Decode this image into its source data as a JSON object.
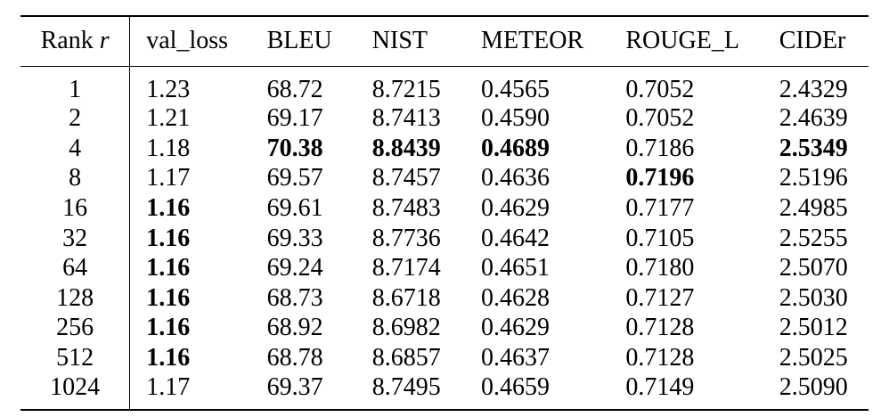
{
  "table": {
    "headers": {
      "rank_label": "Rank",
      "rank_var": "r",
      "val_loss": "val_loss",
      "bleu": "BLEU",
      "nist": "NIST",
      "meteor": "METEOR",
      "rouge": "ROUGE_L",
      "cider": "CIDEr"
    },
    "rows": [
      {
        "rank": "1",
        "val_loss": "1.23",
        "bleu": "68.72",
        "nist": "8.7215",
        "meteor": "0.4565",
        "rouge": "0.7052",
        "cider": "2.4329",
        "bold": []
      },
      {
        "rank": "2",
        "val_loss": "1.21",
        "bleu": "69.17",
        "nist": "8.7413",
        "meteor": "0.4590",
        "rouge": "0.7052",
        "cider": "2.4639",
        "bold": []
      },
      {
        "rank": "4",
        "val_loss": "1.18",
        "bleu": "70.38",
        "nist": "8.8439",
        "meteor": "0.4689",
        "rouge": "0.7186",
        "cider": "2.5349",
        "bold": [
          "bleu",
          "nist",
          "meteor",
          "cider"
        ]
      },
      {
        "rank": "8",
        "val_loss": "1.17",
        "bleu": "69.57",
        "nist": "8.7457",
        "meteor": "0.4636",
        "rouge": "0.7196",
        "cider": "2.5196",
        "bold": [
          "rouge"
        ]
      },
      {
        "rank": "16",
        "val_loss": "1.16",
        "bleu": "69.61",
        "nist": "8.7483",
        "meteor": "0.4629",
        "rouge": "0.7177",
        "cider": "2.4985",
        "bold": [
          "val_loss"
        ]
      },
      {
        "rank": "32",
        "val_loss": "1.16",
        "bleu": "69.33",
        "nist": "8.7736",
        "meteor": "0.4642",
        "rouge": "0.7105",
        "cider": "2.5255",
        "bold": [
          "val_loss"
        ]
      },
      {
        "rank": "64",
        "val_loss": "1.16",
        "bleu": "69.24",
        "nist": "8.7174",
        "meteor": "0.4651",
        "rouge": "0.7180",
        "cider": "2.5070",
        "bold": [
          "val_loss"
        ]
      },
      {
        "rank": "128",
        "val_loss": "1.16",
        "bleu": "68.73",
        "nist": "8.6718",
        "meteor": "0.4628",
        "rouge": "0.7127",
        "cider": "2.5030",
        "bold": [
          "val_loss"
        ]
      },
      {
        "rank": "256",
        "val_loss": "1.16",
        "bleu": "68.92",
        "nist": "8.6982",
        "meteor": "0.4629",
        "rouge": "0.7128",
        "cider": "2.5012",
        "bold": [
          "val_loss"
        ]
      },
      {
        "rank": "512",
        "val_loss": "1.16",
        "bleu": "68.78",
        "nist": "8.6857",
        "meteor": "0.4637",
        "rouge": "0.7128",
        "cider": "2.5025",
        "bold": [
          "val_loss"
        ]
      },
      {
        "rank": "1024",
        "val_loss": "1.17",
        "bleu": "69.37",
        "nist": "8.7495",
        "meteor": "0.4659",
        "rouge": "0.7149",
        "cider": "2.5090",
        "bold": []
      }
    ]
  }
}
